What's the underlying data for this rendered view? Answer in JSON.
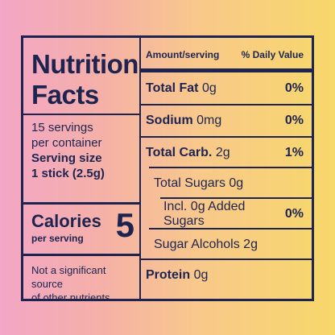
{
  "title_line1": "Nutrition",
  "title_line2": "Facts",
  "servings_line1": "15 servings",
  "servings_line2": "per container",
  "serving_size_line1": "Serving size",
  "serving_size_line2": "1 stick (2.5g)",
  "calories_label": "Calories",
  "calories_sub": "per serving",
  "calories_value": "5",
  "note_line1": "Not a significant source",
  "note_line2": "of other nutrients.",
  "header_left": "Amount/serving",
  "header_right": "% Daily Value",
  "rows": [
    {
      "name": "Total Fat",
      "amount": "0g",
      "dv": "0%"
    },
    {
      "name": "Sodium",
      "amount": "0mg",
      "dv": "0%"
    },
    {
      "name": "Total Carb.",
      "amount": "2g",
      "dv": "1%"
    },
    {
      "name": "Total Sugars 0g",
      "amount": "",
      "dv": ""
    },
    {
      "name": "Incl. 0g Added Sugars",
      "amount": "",
      "dv": "0%"
    },
    {
      "name": "Sugar Alcohols 2g",
      "amount": "",
      "dv": ""
    },
    {
      "name": "Protein",
      "amount": "0g",
      "dv": ""
    }
  ]
}
